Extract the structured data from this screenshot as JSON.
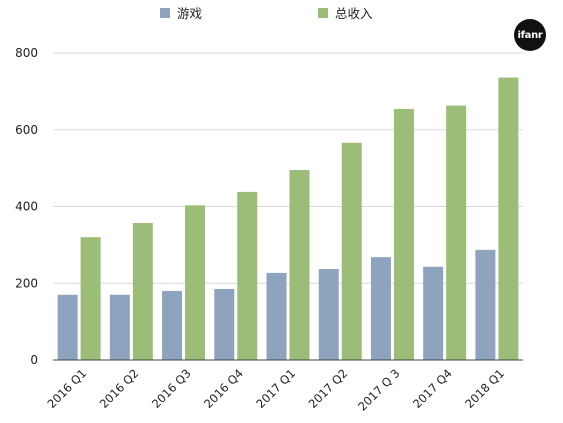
{
  "colors": {
    "series_1": "#8ea3be",
    "series_2": "#9bbd78",
    "grid": "#d9d9d9",
    "axis": "#444444",
    "text": "#222222"
  },
  "watermark": {
    "text": "ifanr"
  },
  "chart_data": {
    "type": "bar",
    "categories": [
      "2016 Q1",
      "2016 Q2",
      "2016 Q3",
      "2016 Q4",
      "2017 Q1",
      "2017 Q2",
      "2017 Q 3",
      "2017 Q4",
      "2018 Q1"
    ],
    "series": [
      {
        "name": "游戏",
        "values": [
          170,
          170,
          180,
          185,
          227,
          237,
          268,
          243,
          287
        ]
      },
      {
        "name": "总收入",
        "values": [
          320,
          357,
          403,
          438,
          495,
          566,
          654,
          663,
          736
        ]
      }
    ],
    "title": "",
    "xlabel": "",
    "ylabel": "",
    "ylim": [
      0,
      800
    ],
    "yticks": [
      "0",
      "200",
      "400",
      "600",
      "800"
    ],
    "grid": true,
    "legend": "top"
  }
}
